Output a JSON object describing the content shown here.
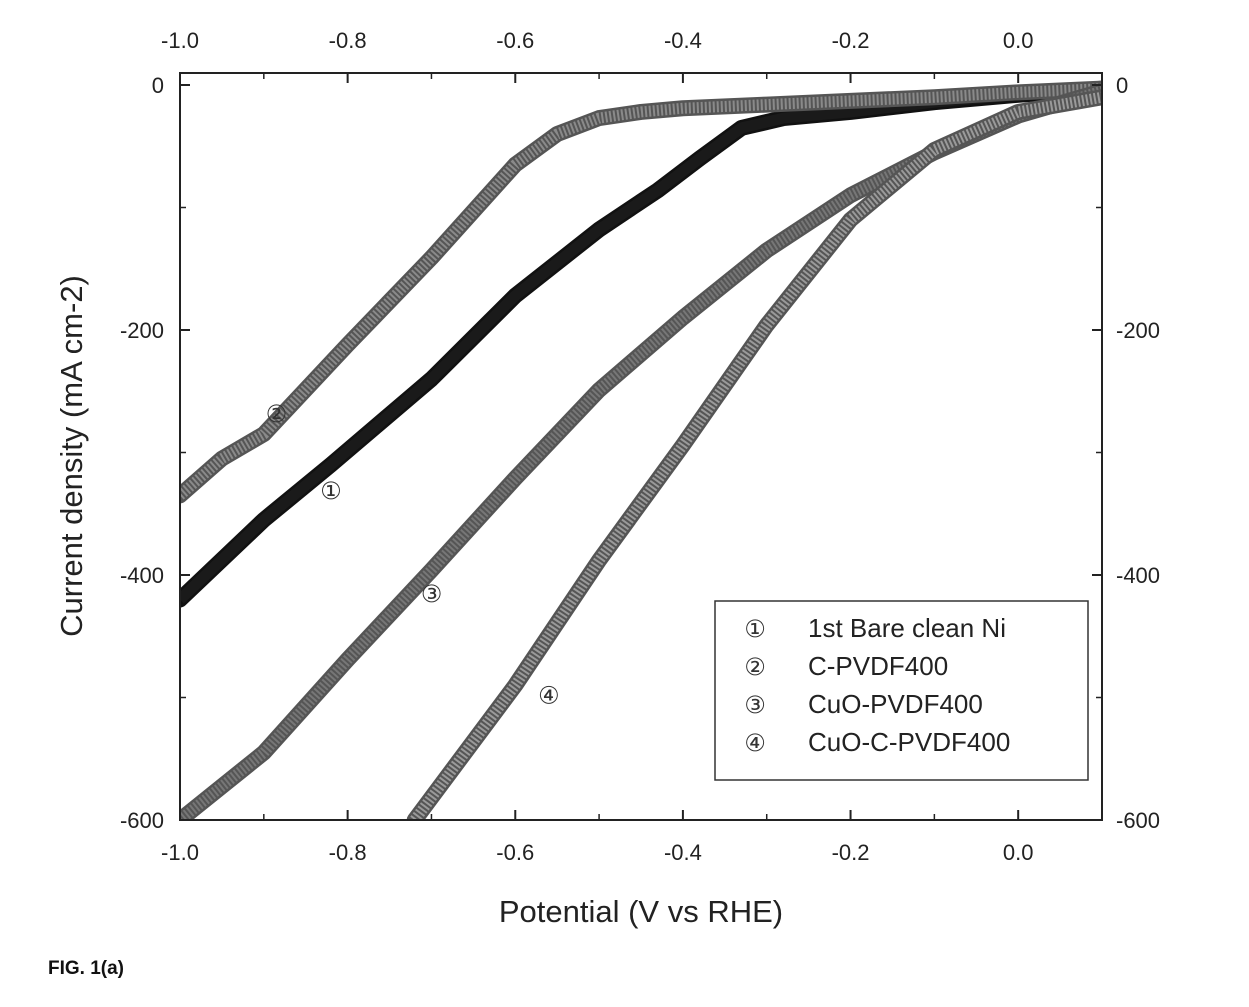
{
  "chart_data": {
    "type": "line",
    "title": "",
    "xlabel": "Potential (V vs RHE)",
    "ylabel": "Current density (mA cm-2)",
    "xlim": [
      -1.0,
      0.1
    ],
    "ylim": [
      -600,
      0
    ],
    "xticks": [
      "-1.0",
      "-0.8",
      "-0.6",
      "-0.4",
      "-0.2",
      "0.0"
    ],
    "xtick_values": [
      -1.0,
      -0.8,
      -0.6,
      -0.4,
      -0.2,
      0.0
    ],
    "yticks": [
      "0",
      "-200",
      "-400",
      "-600"
    ],
    "ytick_values": [
      0,
      -200,
      -400,
      -600
    ],
    "grid": false,
    "legend_position": "bottom-right",
    "series": [
      {
        "name": "1st Bare clean Ni",
        "marker": "①",
        "color": "#111111",
        "x": [
          -1.0,
          -0.9,
          -0.82,
          -0.7,
          -0.6,
          -0.5,
          -0.43,
          -0.38,
          -0.33,
          -0.28,
          -0.2,
          -0.1,
          0.0,
          0.1
        ],
        "y": [
          -420,
          -355,
          -310,
          -240,
          -172,
          -118,
          -86,
          -60,
          -35,
          -27,
          -22,
          -14,
          -8,
          -3
        ],
        "label_at": [
          -0.82,
          -338
        ]
      },
      {
        "name": "C-PVDF400",
        "marker": "②",
        "color": "#8a8a8a",
        "x": [
          -1.0,
          -0.95,
          -0.9,
          -0.8,
          -0.7,
          -0.6,
          -0.55,
          -0.5,
          -0.45,
          -0.4,
          -0.3,
          -0.2,
          -0.1,
          0.0,
          0.1
        ],
        "y": [
          -335,
          -305,
          -285,
          -212,
          -141,
          -65,
          -40,
          -27,
          -22,
          -19,
          -16,
          -13,
          -10,
          -6,
          -3
        ],
        "label_at": [
          -0.885,
          -275
        ]
      },
      {
        "name": "CuO-PVDF400",
        "marker": "③",
        "color": "#777777",
        "x": [
          -1.0,
          -0.9,
          -0.8,
          -0.7,
          -0.6,
          -0.5,
          -0.4,
          -0.3,
          -0.2,
          -0.1,
          0.0,
          0.1
        ],
        "y": [
          -600,
          -545,
          -469,
          -396,
          -321,
          -249,
          -190,
          -135,
          -90,
          -55,
          -25,
          -5
        ],
        "label_at": [
          -0.7,
          -422
        ]
      },
      {
        "name": "CuO-C-PVDF400",
        "marker": "④",
        "color": "#9a9a9a",
        "x": [
          -0.72,
          -0.6,
          -0.5,
          -0.4,
          -0.3,
          -0.2,
          -0.1,
          0.0,
          0.1
        ],
        "y": [
          -600,
          -490,
          -388,
          -294,
          -196,
          -110,
          -53,
          -22,
          -10
        ],
        "label_at": [
          -0.56,
          -505
        ]
      }
    ]
  },
  "figure_label": "FIG. 1(a)"
}
